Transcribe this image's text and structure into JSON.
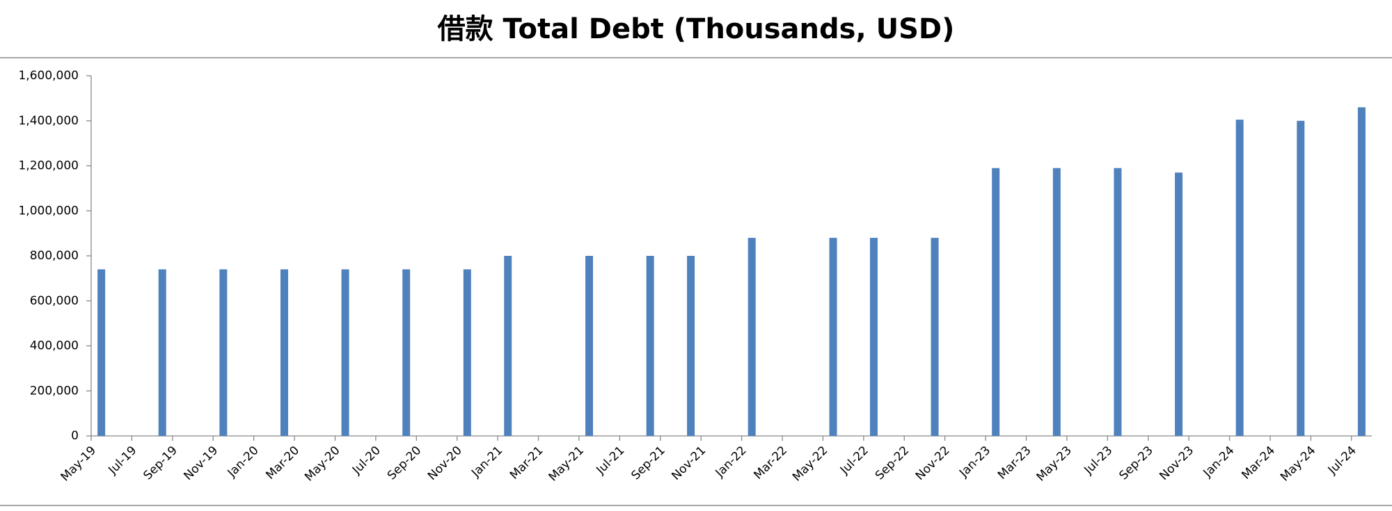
{
  "chart_data": {
    "type": "bar",
    "title": "借款 Total Debt (Thousands, USD)",
    "x": [
      "2019-05",
      "2019-08",
      "2019-11",
      "2020-02",
      "2020-05",
      "2020-08",
      "2020-11",
      "2021-01",
      "2021-05",
      "2021-08",
      "2021-10",
      "2022-01",
      "2022-05",
      "2022-07",
      "2022-10",
      "2023-01",
      "2023-04",
      "2023-07",
      "2023-10",
      "2024-01",
      "2024-04",
      "2024-07"
    ],
    "values": [
      740000,
      740000,
      740000,
      740000,
      740000,
      740000,
      740000,
      800000,
      800000,
      800000,
      800000,
      880000,
      880000,
      880000,
      880000,
      1190000,
      1190000,
      1190000,
      1170000,
      1405000,
      1400000,
      1460000
    ],
    "color": "#4f81bd",
    "xlim": [
      "2019-05",
      "2024-08"
    ],
    "xticks": [
      {
        "value": "2019-05",
        "label": "May-19"
      },
      {
        "value": "2019-07",
        "label": "Jul-19"
      },
      {
        "value": "2019-09",
        "label": "Sep-19"
      },
      {
        "value": "2019-11",
        "label": "Nov-19"
      },
      {
        "value": "2020-01",
        "label": "Jan-20"
      },
      {
        "value": "2020-03",
        "label": "Mar-20"
      },
      {
        "value": "2020-05",
        "label": "May-20"
      },
      {
        "value": "2020-07",
        "label": "Jul-20"
      },
      {
        "value": "2020-09",
        "label": "Sep-20"
      },
      {
        "value": "2020-11",
        "label": "Nov-20"
      },
      {
        "value": "2021-01",
        "label": "Jan-21"
      },
      {
        "value": "2021-03",
        "label": "Mar-21"
      },
      {
        "value": "2021-05",
        "label": "May-21"
      },
      {
        "value": "2021-07",
        "label": "Jul-21"
      },
      {
        "value": "2021-09",
        "label": "Sep-21"
      },
      {
        "value": "2021-11",
        "label": "Nov-21"
      },
      {
        "value": "2022-01",
        "label": "Jan-22"
      },
      {
        "value": "2022-03",
        "label": "Mar-22"
      },
      {
        "value": "2022-05",
        "label": "May-22"
      },
      {
        "value": "2022-07",
        "label": "Jul-22"
      },
      {
        "value": "2022-09",
        "label": "Sep-22"
      },
      {
        "value": "2022-11",
        "label": "Nov-22"
      },
      {
        "value": "2023-01",
        "label": "Jan-23"
      },
      {
        "value": "2023-03",
        "label": "Mar-23"
      },
      {
        "value": "2023-05",
        "label": "May-23"
      },
      {
        "value": "2023-07",
        "label": "Jul-23"
      },
      {
        "value": "2023-09",
        "label": "Sep-23"
      },
      {
        "value": "2023-11",
        "label": "Nov-23"
      },
      {
        "value": "2024-01",
        "label": "Jan-24"
      },
      {
        "value": "2024-03",
        "label": "Mar-24"
      },
      {
        "value": "2024-05",
        "label": "May-24"
      },
      {
        "value": "2024-07",
        "label": "Jul-24"
      }
    ],
    "ylim": [
      0,
      1600000
    ],
    "yticks": [
      0,
      {
        "value": 200000,
        "label": "200,000"
      },
      {
        "value": 400000,
        "label": "400,000"
      },
      {
        "value": 600000,
        "label": "600,000"
      },
      {
        "value": 800000,
        "label": "800,000"
      },
      {
        "value": 1000000,
        "label": "1,000,000"
      },
      {
        "value": 1200000,
        "label": "1,200,000"
      },
      {
        "value": 1400000,
        "label": "1,400,000"
      },
      {
        "value": 1600000,
        "label": "1,600,000"
      }
    ],
    "grid": false
  }
}
